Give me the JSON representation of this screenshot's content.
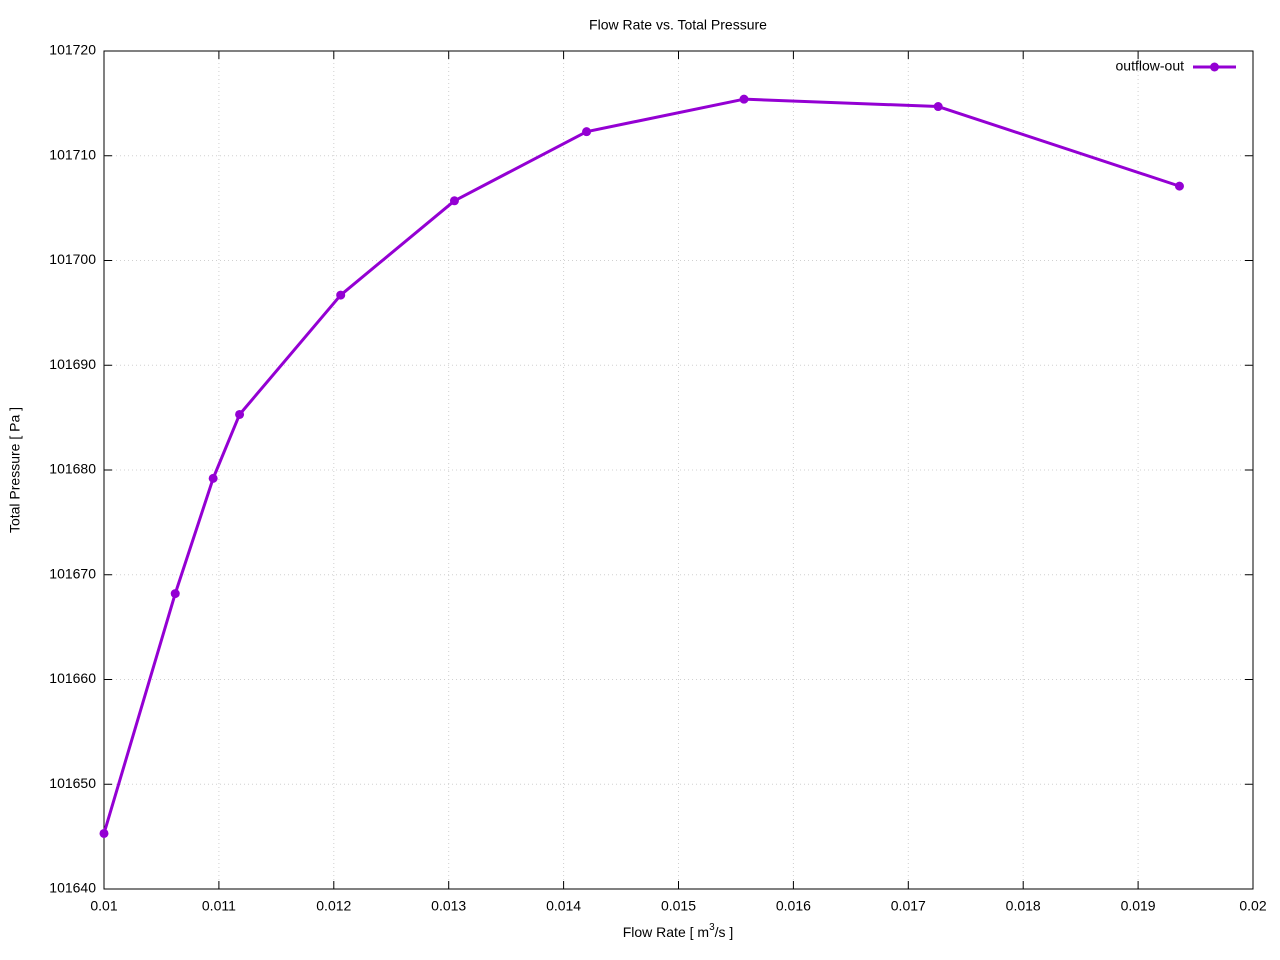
{
  "chart_data": {
    "type": "line",
    "title": "Flow Rate vs. Total Pressure",
    "x_label": [
      "Flow Rate [ m",
      "3",
      "/s ]"
    ],
    "y_label": "Total Pressure [ Pa ]",
    "x": [
      0.01,
      0.01062,
      0.01095,
      0.01118,
      0.01206,
      0.01305,
      0.0142,
      0.01557,
      0.01726,
      0.01936
    ],
    "series": [
      {
        "name": "outflow-out",
        "color": "#9400d3",
        "values": [
          101645.3,
          101668.2,
          101679.2,
          101685.3,
          101696.7,
          101705.7,
          101712.3,
          101715.4,
          101714.7,
          101707.1
        ]
      }
    ],
    "xlim": [
      0.01,
      0.02
    ],
    "xticks": [
      0.01,
      0.011,
      0.012,
      0.013,
      0.014,
      0.015,
      0.016,
      0.017,
      0.018,
      0.019,
      0.02
    ],
    "ylim": [
      101640,
      101720
    ],
    "yticks": [
      101640,
      101650,
      101660,
      101670,
      101680,
      101690,
      101700,
      101710,
      101720
    ],
    "grid": true,
    "legend": "top-right"
  }
}
